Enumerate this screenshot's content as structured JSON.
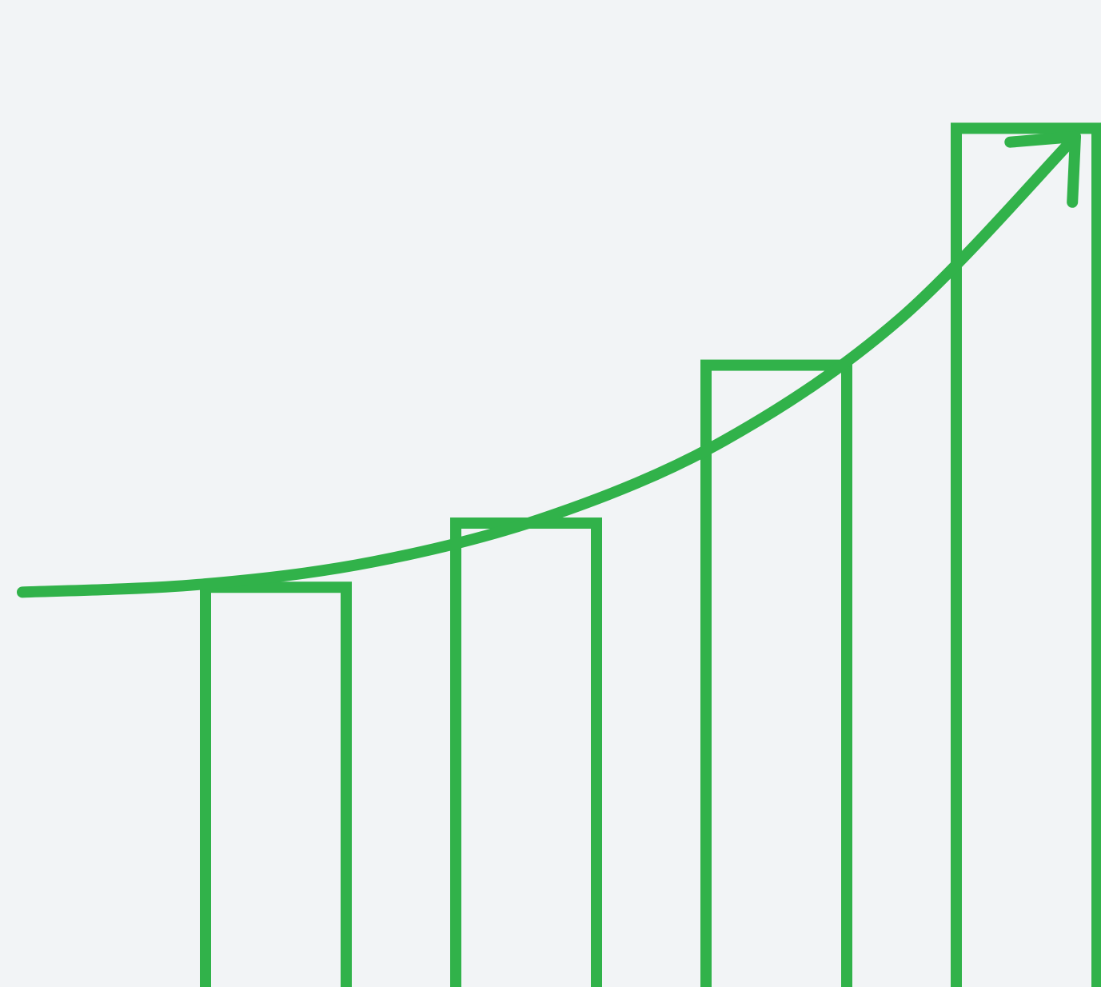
{
  "colors": {
    "background": "#f2f4f6",
    "accent": "#31b24a"
  },
  "chart_data": {
    "type": "bar",
    "categories": [
      "",
      "",
      "",
      ""
    ],
    "values": [
      40.5,
      47.0,
      63.0,
      87.0
    ],
    "ylim": [
      0,
      100
    ],
    "grid": false,
    "legend": "none",
    "style": "outlined bars",
    "trend": {
      "type": "line",
      "shape": "exponential curve with arrowhead",
      "values": [
        52,
        53,
        56,
        62,
        72,
        88,
        112
      ],
      "ylim": [
        0,
        130
      ]
    }
  }
}
